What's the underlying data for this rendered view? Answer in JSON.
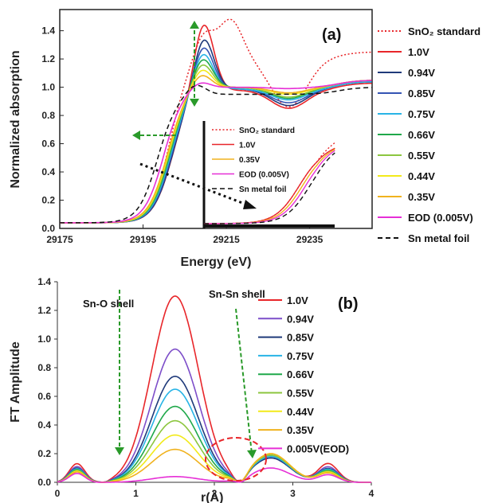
{
  "chart_data": [
    {
      "type": "line",
      "panel_label": "(a)",
      "xlabel": "Energy (eV)",
      "ylabel": "Normalized absorption",
      "xlim": [
        29175,
        29250
      ],
      "ylim": [
        0,
        1.55
      ],
      "xticks": [
        "29175",
        "29195",
        "29215",
        "29235"
      ],
      "xtick_values": [
        29175,
        29195,
        29215,
        29235
      ],
      "yticks": [
        "0.0",
        "0.2",
        "0.4",
        "0.6",
        "0.8",
        "1.0",
        "1.2",
        "1.4"
      ],
      "ytick_values": [
        0,
        0.2,
        0.4,
        0.6,
        0.8,
        1.0,
        1.2,
        1.4
      ],
      "legend_position": "right",
      "series": [
        {
          "name": "SnO₂ standard",
          "color": "#e8262a",
          "dash": "dotted",
          "edge": 29201.5,
          "peak": 1.4,
          "peakpos": 29209.5,
          "post": 1.2,
          "dip": 0.86
        },
        {
          "name": "1.0V",
          "color": "#e8262a",
          "dash": "solid",
          "edge": 29202.0,
          "peak": 1.49,
          "peakpos": 29209.5,
          "post": 0.98,
          "dip": 0.85
        },
        {
          "name": "0.94V",
          "color": "#1f3a7a",
          "dash": "solid",
          "edge": 29202.0,
          "peak": 1.38,
          "peakpos": 29209.5,
          "post": 0.99,
          "dip": 0.87
        },
        {
          "name": "0.85V",
          "color": "#3454b4",
          "dash": "solid",
          "edge": 29201.8,
          "peak": 1.32,
          "peakpos": 29209.4,
          "post": 0.99,
          "dip": 0.89
        },
        {
          "name": "0.75V",
          "color": "#28b4e6",
          "dash": "solid",
          "edge": 29201.6,
          "peak": 1.27,
          "peakpos": 29209.3,
          "post": 0.99,
          "dip": 0.91
        },
        {
          "name": "0.66V",
          "color": "#1fa84a",
          "dash": "solid",
          "edge": 29201.4,
          "peak": 1.23,
          "peakpos": 29209.2,
          "post": 1.0,
          "dip": 0.92
        },
        {
          "name": "0.55V",
          "color": "#8cc63f",
          "dash": "solid",
          "edge": 29201.2,
          "peak": 1.19,
          "peakpos": 29209.1,
          "post": 1.0,
          "dip": 0.93
        },
        {
          "name": "0.44V",
          "color": "#f2ea1a",
          "dash": "solid",
          "edge": 29201.0,
          "peak": 1.15,
          "peakpos": 29209.0,
          "post": 1.0,
          "dip": 0.95
        },
        {
          "name": "0.35V",
          "color": "#f0b21e",
          "dash": "solid",
          "edge": 29200.8,
          "peak": 1.11,
          "peakpos": 29208.8,
          "post": 1.0,
          "dip": 0.96
        },
        {
          "name": "EOD (0.005V)",
          "color": "#e62fd6",
          "dash": "solid",
          "edge": 29200.0,
          "peak": 1.05,
          "peakpos": 29208.5,
          "post": 1.0,
          "dip": 0.99
        },
        {
          "name": "Sn metal foil",
          "color": "#111111",
          "dash": "dashed",
          "edge": 29198.5,
          "peak": 1.03,
          "peakpos": 29207.5,
          "post": 0.95,
          "dip": 0.95
        }
      ],
      "inset": {
        "legend": [
          "SnO₂ standard",
          "1.0V",
          "0.35V",
          "EOD (0.005V)",
          "Sn metal foil"
        ],
        "legend_colors": [
          "#e8262a",
          "#e8262a",
          "#f0b21e",
          "#e62fd6",
          "#111111"
        ],
        "legend_dash": [
          "dotted",
          "solid",
          "solid",
          "solid",
          "dashed"
        ]
      }
    },
    {
      "type": "line",
      "panel_label": "(b)",
      "xlabel": "r(Å)",
      "ylabel": "FT Amplitude",
      "xlim": [
        0,
        4
      ],
      "ylim": [
        0,
        1.4
      ],
      "xticks": [
        "0",
        "1",
        "2",
        "3",
        "4"
      ],
      "xtick_values": [
        0,
        1,
        2,
        3,
        4
      ],
      "yticks": [
        "0.0",
        "0.2",
        "0.4",
        "0.6",
        "0.8",
        "1.0",
        "1.2",
        "1.4"
      ],
      "ytick_values": [
        0,
        0.2,
        0.4,
        0.6,
        0.8,
        1.0,
        1.2,
        1.4
      ],
      "annotations": [
        "Sn-O shell",
        "Sn-Sn shell"
      ],
      "legend_position": "top-right",
      "series": [
        {
          "name": "1.0V",
          "color": "#e8262a",
          "peak": 1.3,
          "peak2": 0.18
        },
        {
          "name": "0.94V",
          "color": "#7d4ec9",
          "peak": 0.93,
          "peak2": 0.17
        },
        {
          "name": "0.85V",
          "color": "#1f3a7a",
          "peak": 0.74,
          "peak2": 0.17
        },
        {
          "name": "0.75V",
          "color": "#28b4e6",
          "peak": 0.65,
          "peak2": 0.18
        },
        {
          "name": "0.66V",
          "color": "#1fa84a",
          "peak": 0.53,
          "peak2": 0.19
        },
        {
          "name": "0.55V",
          "color": "#8cc63f",
          "peak": 0.43,
          "peak2": 0.19
        },
        {
          "name": "0.44V",
          "color": "#f2ea1a",
          "peak": 0.33,
          "peak2": 0.2
        },
        {
          "name": "0.35V",
          "color": "#f0b21e",
          "peak": 0.23,
          "peak2": 0.2
        },
        {
          "name": "0.005V(EOD)",
          "color": "#e62fd6",
          "peak": 0.04,
          "peak2": 0.1
        }
      ]
    }
  ]
}
